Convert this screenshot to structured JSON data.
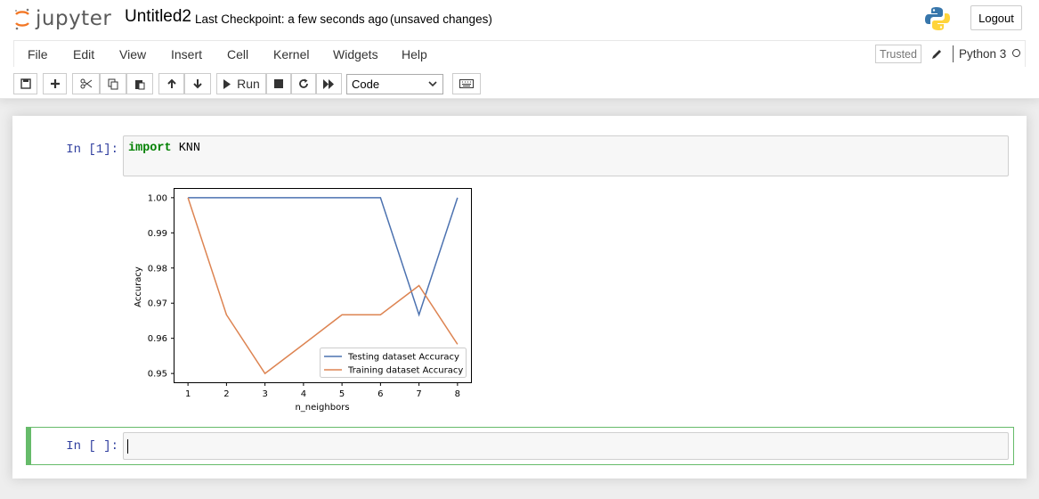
{
  "header": {
    "logo_text": "jupyter",
    "notebook_name": "Untitled2",
    "checkpoint": "Last Checkpoint: a few seconds ago",
    "unsaved": "(unsaved changes)",
    "logout": "Logout"
  },
  "menubar": {
    "items": [
      "File",
      "Edit",
      "View",
      "Insert",
      "Cell",
      "Kernel",
      "Widgets",
      "Help"
    ],
    "trusted": "Trusted",
    "kernel": "Python 3"
  },
  "toolbar": {
    "run_label": "Run",
    "cell_type": "Code",
    "icons": [
      "save-icon",
      "plus-icon",
      "cut-icon",
      "copy-icon",
      "paste-icon",
      "arrow-up-icon",
      "arrow-down-icon",
      "play-icon",
      "stop-icon",
      "restart-icon",
      "fast-forward-icon",
      "keyboard-icon"
    ]
  },
  "cells": [
    {
      "prompt": "In [1]:",
      "keyword": "import",
      "code": " KNN"
    },
    {
      "prompt": "In [ ]:",
      "code": ""
    }
  ],
  "colors": {
    "testing": "#4c72b0",
    "training": "#dd8452",
    "prompt": "#303f9f",
    "active_cell": "#66bb6a"
  },
  "chart_data": {
    "type": "line",
    "x": [
      1,
      2,
      3,
      4,
      5,
      6,
      7,
      8
    ],
    "series": [
      {
        "name": "Testing dataset Accuracy",
        "values": [
          1.0,
          1.0,
          1.0,
          1.0,
          1.0,
          1.0,
          0.9667,
          1.0
        ]
      },
      {
        "name": "Training dataset Accuracy",
        "values": [
          1.0,
          0.9667,
          0.95,
          0.9583,
          0.9667,
          0.9667,
          0.975,
          0.9583
        ]
      }
    ],
    "xlabel": "n_neighbors",
    "ylabel": "Accuracy",
    "xticks": [
      "1",
      "2",
      "3",
      "4",
      "5",
      "6",
      "7",
      "8"
    ],
    "yticks": [
      "0.95",
      "0.96",
      "0.97",
      "0.98",
      "0.99",
      "1.00"
    ],
    "xlim": [
      0.65,
      8.35
    ],
    "ylim": [
      0.9475,
      1.0025
    ],
    "legend": "lower-right",
    "grid": false
  }
}
